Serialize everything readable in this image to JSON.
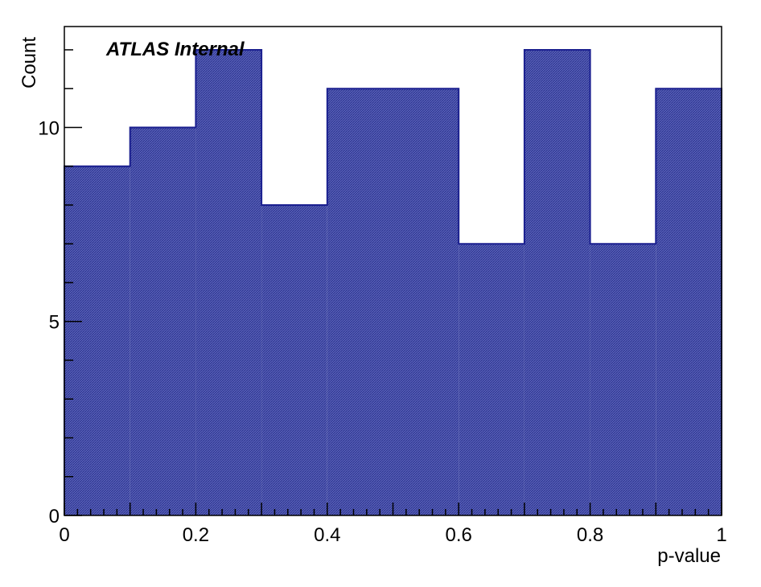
{
  "chart_data": {
    "type": "bar",
    "histogram": true,
    "label": "ATLAS Internal",
    "xlabel": "p-value",
    "ylabel": "Count",
    "xlim": [
      0,
      1
    ],
    "ylim": [
      0,
      12.6
    ],
    "bin_edges": [
      0,
      0.1,
      0.2,
      0.3,
      0.4,
      0.5,
      0.6,
      0.7,
      0.8,
      0.9,
      1.0
    ],
    "values": [
      9,
      10,
      12,
      8,
      11,
      11,
      7,
      12,
      7,
      11
    ],
    "x_ticks": [
      0,
      0.2,
      0.4,
      0.6,
      0.8,
      1
    ],
    "x_tick_labels": [
      "0",
      "0.2",
      "0.4",
      "0.6",
      "0.8",
      "1"
    ],
    "y_ticks": [
      0,
      5,
      10
    ],
    "y_tick_labels": [
      "0",
      "5",
      "10"
    ],
    "fill_color": "#3a45a3",
    "line_color": "#1a1f8f",
    "grid": false
  }
}
